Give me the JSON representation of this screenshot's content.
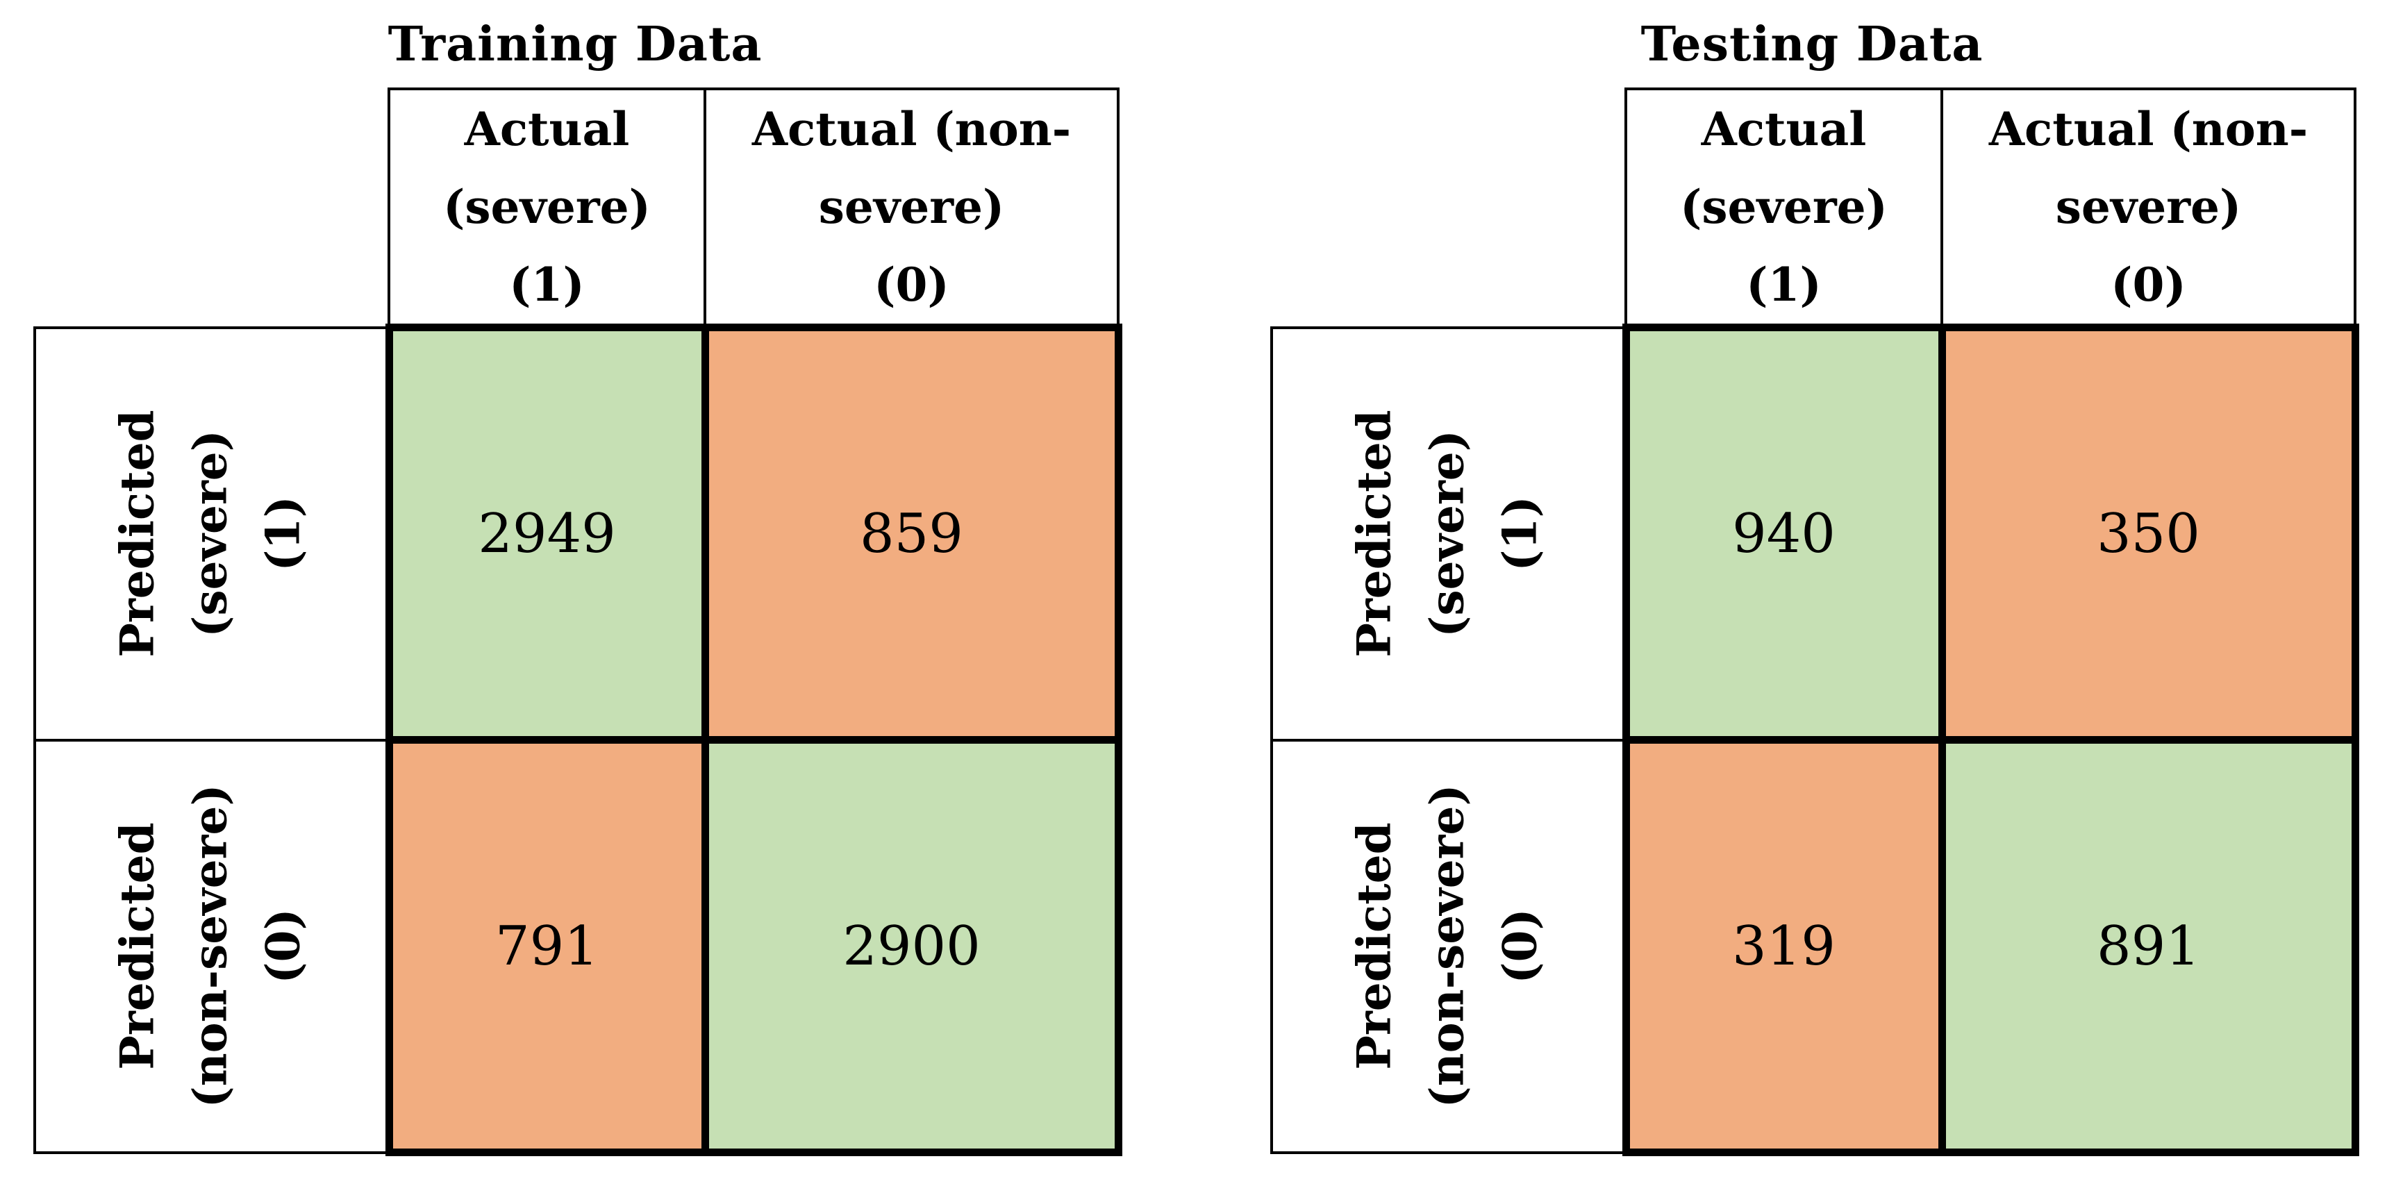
{
  "colors": {
    "match_fill": "#c6e0b4",
    "mismatch_fill": "#f2ad80",
    "border": "#000000",
    "text": "#000000",
    "background": "#ffffff"
  },
  "matrices": [
    {
      "title": "Training Data",
      "col_headers": [
        [
          "Actual",
          "(severe)",
          "(1)"
        ],
        [
          "Actual (non-",
          "severe)",
          "(0)"
        ]
      ],
      "row_headers": [
        [
          "Predicted",
          "(severe)",
          "(1)"
        ],
        [
          "Predicted",
          "(non-severe)",
          "(0)"
        ]
      ],
      "cells": [
        [
          "2949",
          "859"
        ],
        [
          "791",
          "2900"
        ]
      ]
    },
    {
      "title": "Testing Data",
      "col_headers": [
        [
          "Actual",
          "(severe)",
          "(1)"
        ],
        [
          "Actual (non-",
          "severe)",
          "(0)"
        ]
      ],
      "row_headers": [
        [
          "Predicted",
          "(severe)",
          "(1)"
        ],
        [
          "Predicted",
          "(non-severe)",
          "(0)"
        ]
      ],
      "cells": [
        [
          "940",
          "350"
        ],
        [
          "319",
          "891"
        ]
      ]
    }
  ],
  "chart_data": [
    {
      "type": "heatmap",
      "title": "Training Data",
      "columns": [
        "Actual (severe) (1)",
        "Actual (non-severe) (0)"
      ],
      "rows": [
        "Predicted (severe) (1)",
        "Predicted (non-severe) (0)"
      ],
      "values": [
        [
          2949,
          859
        ],
        [
          791,
          2900
        ]
      ],
      "cell_colors": [
        [
          "#c6e0b4",
          "#f2ad80"
        ],
        [
          "#f2ad80",
          "#c6e0b4"
        ]
      ],
      "legend": "none",
      "grid": "thick black borders around data cells, thin black borders around header cells"
    },
    {
      "type": "heatmap",
      "title": "Testing Data",
      "columns": [
        "Actual (severe) (1)",
        "Actual (non-severe) (0)"
      ],
      "rows": [
        "Predicted (severe) (1)",
        "Predicted (non-severe) (0)"
      ],
      "values": [
        [
          940,
          350
        ],
        [
          319,
          891
        ]
      ],
      "cell_colors": [
        [
          "#c6e0b4",
          "#f2ad80"
        ],
        [
          "#f2ad80",
          "#c6e0b4"
        ]
      ],
      "legend": "none",
      "grid": "thick black borders around data cells, thin black borders around header cells"
    }
  ]
}
